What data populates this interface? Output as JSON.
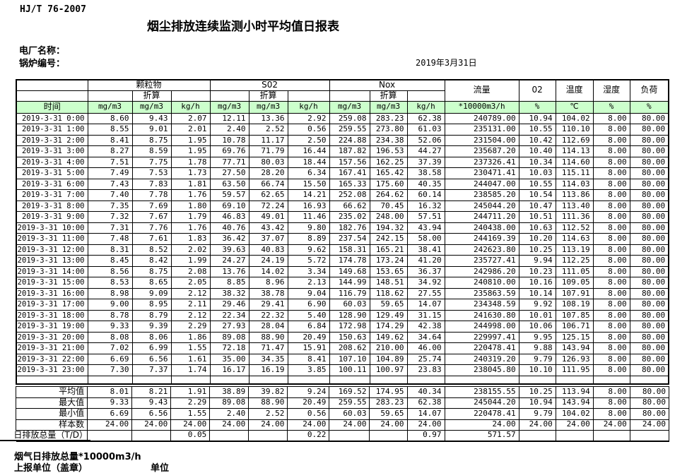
{
  "doc": {
    "standard_code": "HJ/T  76-2007",
    "title": "烟尘排放连续监测小时平均值日报表",
    "plant_name_label": "电厂名称：",
    "boiler_no_label": "锅炉编号：",
    "date": "2019年3月31日",
    "footer_total_label": "烟气日排放总量*10000m3/h",
    "report_unit_label": "上报单位（盖章）",
    "unit_label": "单位"
  },
  "colors": {
    "header_green": "#ccffcc"
  },
  "table": {
    "time_header": "时间",
    "converted_label": "折算",
    "pollutant_groups": [
      {
        "label": "颗粒物",
        "sub": [
          "",
          "折算",
          ""
        ],
        "units": [
          "mg/m3",
          "mg/m3",
          "kg/h"
        ]
      },
      {
        "label": "S02",
        "sub": [
          "",
          "折算",
          ""
        ],
        "units": [
          "mg/m3",
          "mg/m3",
          "kg/h"
        ]
      },
      {
        "label": "Nox",
        "sub": [
          "",
          "折算",
          ""
        ],
        "units": [
          "mg/m3",
          "mg/m3",
          "kg/h"
        ]
      }
    ],
    "tail_columns": [
      {
        "label": "流量",
        "unit": "*10000m3/h"
      },
      {
        "label": "02",
        "unit": "%"
      },
      {
        "label": "温度",
        "unit": "℃"
      },
      {
        "label": "湿度",
        "unit": "%"
      },
      {
        "label": "负荷",
        "unit": "%"
      }
    ],
    "rows": [
      [
        "2019-3-31 0:00",
        "8.60",
        "9.43",
        "2.07",
        "12.11",
        "13.36",
        "2.92",
        "259.08",
        "283.23",
        "62.38",
        "240789.00",
        "10.94",
        "104.02",
        "8.00",
        "80.00"
      ],
      [
        "2019-3-31 1:00",
        "8.55",
        "9.01",
        "2.01",
        "2.40",
        "2.52",
        "0.56",
        "259.55",
        "273.80",
        "61.03",
        "235131.00",
        "10.55",
        "110.10",
        "8.00",
        "80.00"
      ],
      [
        "2019-3-31 2:00",
        "8.41",
        "8.75",
        "1.95",
        "10.78",
        "11.17",
        "2.50",
        "224.88",
        "234.38",
        "52.06",
        "231504.00",
        "10.42",
        "112.69",
        "8.00",
        "80.00"
      ],
      [
        "2019-3-31 3:00",
        "8.27",
        "8.59",
        "1.95",
        "69.76",
        "71.79",
        "16.44",
        "187.82",
        "196.53",
        "44.27",
        "235687.20",
        "10.40",
        "114.13",
        "8.00",
        "80.00"
      ],
      [
        "2019-3-31 4:00",
        "7.51",
        "7.75",
        "1.78",
        "77.71",
        "80.03",
        "18.44",
        "157.56",
        "162.25",
        "37.39",
        "237326.41",
        "10.34",
        "114.60",
        "8.00",
        "80.00"
      ],
      [
        "2019-3-31 5:00",
        "7.49",
        "7.53",
        "1.73",
        "27.50",
        "28.20",
        "6.34",
        "167.41",
        "165.42",
        "38.58",
        "230471.41",
        "10.03",
        "115.11",
        "8.00",
        "80.00"
      ],
      [
        "2019-3-31 6:00",
        "7.43",
        "7.83",
        "1.81",
        "63.50",
        "66.74",
        "15.50",
        "165.33",
        "175.60",
        "40.35",
        "244047.00",
        "10.55",
        "114.03",
        "8.00",
        "80.00"
      ],
      [
        "2019-3-31 7:00",
        "7.40",
        "7.78",
        "1.76",
        "59.57",
        "62.65",
        "14.21",
        "252.08",
        "264.62",
        "60.14",
        "238585.20",
        "10.54",
        "113.86",
        "8.00",
        "80.00"
      ],
      [
        "2019-3-31 8:00",
        "7.35",
        "7.69",
        "1.80",
        "69.10",
        "72.24",
        "16.93",
        "66.62",
        "70.45",
        "16.32",
        "245044.20",
        "10.47",
        "113.40",
        "8.00",
        "80.00"
      ],
      [
        "2019-3-31 9:00",
        "7.32",
        "7.67",
        "1.79",
        "46.83",
        "49.01",
        "11.46",
        "235.02",
        "248.00",
        "57.51",
        "244711.20",
        "10.51",
        "111.36",
        "8.00",
        "80.00"
      ],
      [
        "2019-3-31 10:00",
        "7.31",
        "7.76",
        "1.76",
        "40.76",
        "43.42",
        "9.80",
        "182.76",
        "194.32",
        "43.94",
        "240438.00",
        "10.63",
        "112.52",
        "8.00",
        "80.00"
      ],
      [
        "2019-3-31 11:00",
        "7.48",
        "7.61",
        "1.83",
        "36.42",
        "37.07",
        "8.89",
        "237.54",
        "242.15",
        "58.00",
        "244169.39",
        "10.20",
        "114.63",
        "8.00",
        "80.00"
      ],
      [
        "2019-3-31 12:00",
        "8.31",
        "8.52",
        "2.02",
        "39.63",
        "40.83",
        "9.62",
        "158.31",
        "165.21",
        "38.41",
        "242623.80",
        "10.25",
        "113.19",
        "8.00",
        "80.00"
      ],
      [
        "2019-3-31 13:00",
        "8.45",
        "8.42",
        "1.99",
        "24.27",
        "24.19",
        "5.72",
        "174.78",
        "173.24",
        "41.20",
        "235727.41",
        "9.94",
        "112.25",
        "8.00",
        "80.00"
      ],
      [
        "2019-3-31 14:00",
        "8.56",
        "8.75",
        "2.08",
        "13.76",
        "14.02",
        "3.34",
        "149.68",
        "153.65",
        "36.37",
        "242986.20",
        "10.23",
        "111.05",
        "8.00",
        "80.00"
      ],
      [
        "2019-3-31 15:00",
        "8.53",
        "8.65",
        "2.05",
        "8.85",
        "8.96",
        "2.13",
        "144.99",
        "148.51",
        "34.92",
        "240810.00",
        "10.16",
        "109.05",
        "8.00",
        "80.00"
      ],
      [
        "2019-3-31 16:00",
        "8.98",
        "9.09",
        "2.12",
        "38.32",
        "38.78",
        "9.04",
        "116.79",
        "118.62",
        "27.55",
        "235863.59",
        "10.14",
        "107.91",
        "8.00",
        "80.00"
      ],
      [
        "2019-3-31 17:00",
        "9.00",
        "8.95",
        "2.11",
        "29.46",
        "29.41",
        "6.90",
        "60.03",
        "59.65",
        "14.07",
        "234348.59",
        "9.92",
        "108.19",
        "8.00",
        "80.00"
      ],
      [
        "2019-3-31 18:00",
        "8.78",
        "8.79",
        "2.12",
        "22.34",
        "22.32",
        "5.40",
        "128.90",
        "129.49",
        "31.15",
        "241630.80",
        "10.01",
        "107.85",
        "8.00",
        "80.00"
      ],
      [
        "2019-3-31 19:00",
        "9.33",
        "9.39",
        "2.29",
        "27.93",
        "28.04",
        "6.84",
        "172.98",
        "174.29",
        "42.38",
        "244998.00",
        "10.06",
        "106.71",
        "8.00",
        "80.00"
      ],
      [
        "2019-3-31 20:00",
        "8.08",
        "8.06",
        "1.86",
        "89.08",
        "88.90",
        "20.49",
        "150.63",
        "149.62",
        "34.64",
        "229997.41",
        "9.95",
        "125.15",
        "8.00",
        "80.00"
      ],
      [
        "2019-3-31 21:00",
        "7.02",
        "6.99",
        "1.55",
        "72.18",
        "71.47",
        "15.91",
        "208.62",
        "210.00",
        "46.00",
        "220478.41",
        "9.88",
        "143.94",
        "8.00",
        "80.00"
      ],
      [
        "2019-3-31 22:00",
        "6.69",
        "6.56",
        "1.61",
        "35.00",
        "34.35",
        "8.41",
        "107.10",
        "104.89",
        "25.74",
        "240319.20",
        "9.79",
        "126.93",
        "8.00",
        "80.00"
      ],
      [
        "2019-3-31 23:00",
        "7.30",
        "7.37",
        "1.74",
        "16.17",
        "16.19",
        "3.85",
        "100.11",
        "100.97",
        "23.83",
        "238045.80",
        "10.10",
        "111.95",
        "8.00",
        "80.00"
      ]
    ],
    "summary_rows": [
      {
        "label": "平均值",
        "values": [
          "8.01",
          "8.21",
          "1.91",
          "38.89",
          "39.82",
          "9.24",
          "169.52",
          "174.95",
          "40.34",
          "238155.55",
          "10.25",
          "113.94",
          "8.00",
          "80.00"
        ]
      },
      {
        "label": "最大值",
        "values": [
          "9.33",
          "9.43",
          "2.29",
          "89.08",
          "88.90",
          "20.49",
          "259.55",
          "283.23",
          "62.38",
          "245044.20",
          "10.94",
          "143.94",
          "8.00",
          "80.00"
        ]
      },
      {
        "label": "最小值",
        "values": [
          "6.69",
          "6.56",
          "1.55",
          "2.40",
          "2.52",
          "0.56",
          "60.03",
          "59.65",
          "14.07",
          "220478.41",
          "9.79",
          "104.02",
          "8.00",
          "80.00"
        ]
      },
      {
        "label": "样本数",
        "values": [
          "24.00",
          "24.00",
          "24.00",
          "24.00",
          "24.00",
          "24.00",
          "24.00",
          "24.00",
          "24.00",
          "24.00",
          "24.00",
          "24.00",
          "24.00",
          "24.00"
        ]
      }
    ],
    "daily_total_row": {
      "label": "日排放总量（T/D）",
      "values": [
        "",
        "",
        "0.05",
        "",
        "",
        "0.22",
        "",
        "",
        "0.97",
        "571.57",
        "",
        "",
        "",
        ""
      ]
    }
  }
}
